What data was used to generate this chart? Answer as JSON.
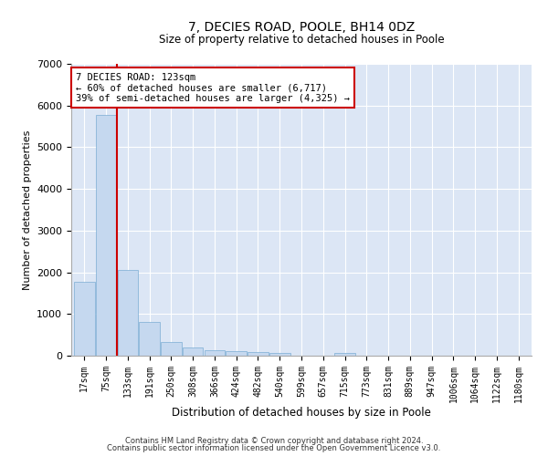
{
  "title_line1": "7, DECIES ROAD, POOLE, BH14 0DZ",
  "title_line2": "Size of property relative to detached houses in Poole",
  "xlabel": "Distribution of detached houses by size in Poole",
  "ylabel": "Number of detached properties",
  "bar_color": "#c5d8ef",
  "bar_edge_color": "#7aadd4",
  "bg_color": "#dce6f5",
  "grid_color": "#ffffff",
  "categories": [
    "17sqm",
    "75sqm",
    "133sqm",
    "191sqm",
    "250sqm",
    "308sqm",
    "366sqm",
    "424sqm",
    "482sqm",
    "540sqm",
    "599sqm",
    "657sqm",
    "715sqm",
    "773sqm",
    "831sqm",
    "889sqm",
    "947sqm",
    "1006sqm",
    "1064sqm",
    "1122sqm",
    "1180sqm"
  ],
  "values": [
    1780,
    5780,
    2060,
    820,
    330,
    190,
    130,
    110,
    95,
    75,
    0,
    0,
    70,
    0,
    0,
    0,
    0,
    0,
    0,
    0,
    0
  ],
  "ylim": [
    0,
    7000
  ],
  "yticks": [
    0,
    1000,
    2000,
    3000,
    4000,
    5000,
    6000,
    7000
  ],
  "annotation_text": "7 DECIES ROAD: 123sqm\n← 60% of detached houses are smaller (6,717)\n39% of semi-detached houses are larger (4,325) →",
  "vline_x": 1.5,
  "vline_color": "#cc0000",
  "annotation_box_color": "#cc0000",
  "footer_line1": "Contains HM Land Registry data © Crown copyright and database right 2024.",
  "footer_line2": "Contains public sector information licensed under the Open Government Licence v3.0."
}
